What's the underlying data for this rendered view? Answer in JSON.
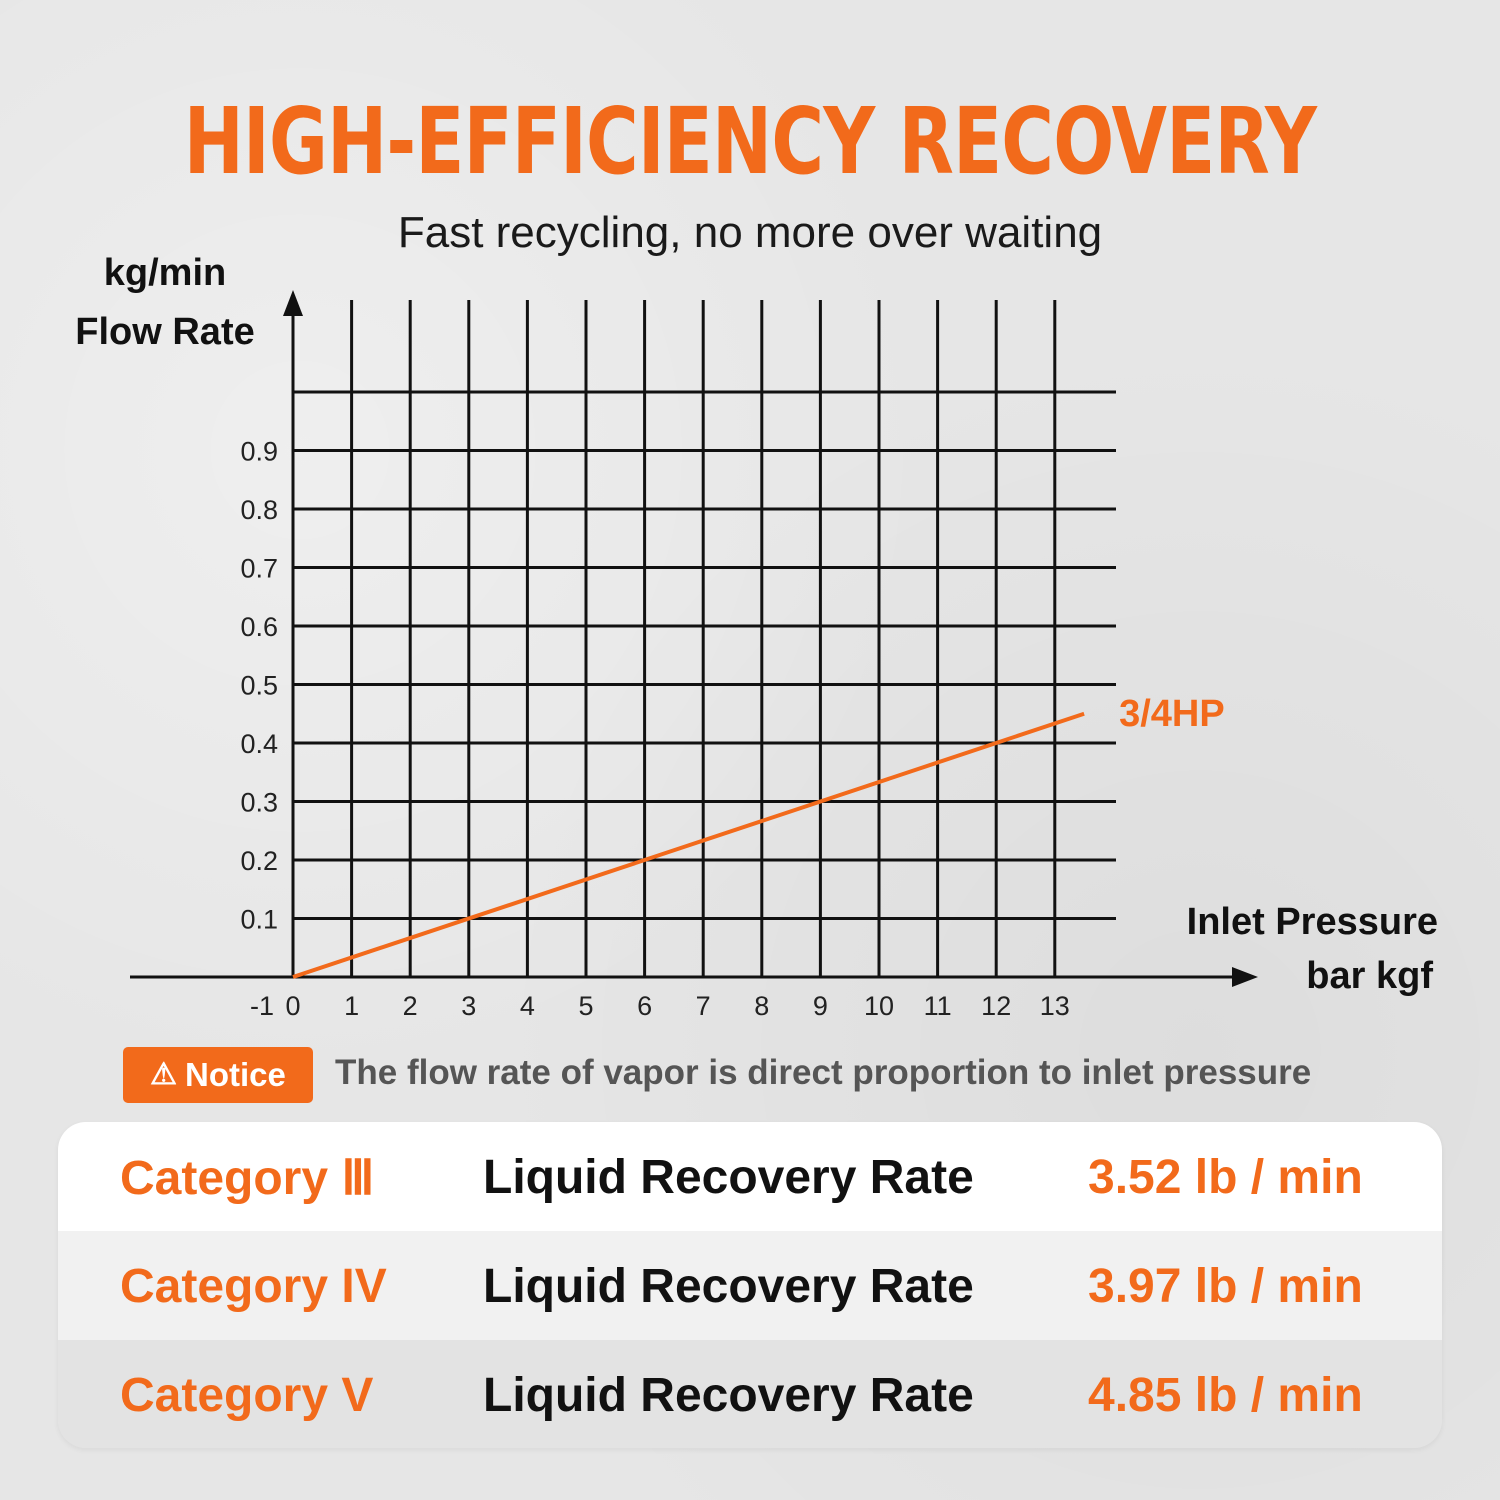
{
  "header": {
    "title": "HIGH-EFFICIENCY RECOVERY",
    "subtitle": "Fast recycling, no more over waiting"
  },
  "colors": {
    "accent": "#f26a1b",
    "grid": "#111111",
    "text": "#1a1a1a"
  },
  "chart_data": {
    "type": "line",
    "xlabel": [
      "Inlet Pressure",
      "bar kgf"
    ],
    "ylabel": [
      "kg/min",
      "Flow Rate"
    ],
    "xlim": [
      -1,
      13
    ],
    "ylim": [
      0,
      0.9
    ],
    "x_ticks": [
      "-1",
      "0",
      "1",
      "2",
      "3",
      "4",
      "5",
      "6",
      "7",
      "8",
      "9",
      "10",
      "11",
      "12",
      "13"
    ],
    "y_ticks": [
      "0.1",
      "0.2",
      "0.3",
      "0.4",
      "0.5",
      "0.6",
      "0.7",
      "0.8",
      "0.9"
    ],
    "grid": true,
    "series": [
      {
        "name": "3/4HP",
        "x": [
          0,
          13.5
        ],
        "y": [
          0,
          0.45
        ]
      }
    ]
  },
  "notice": {
    "icon": "warning-icon",
    "badge_label": "Notice",
    "text": "The flow rate of vapor is direct proportion to inlet pressure"
  },
  "specs": [
    {
      "category": "Category Ⅲ",
      "label": "Liquid Recovery Rate",
      "value": "3.52 lb / min"
    },
    {
      "category": "Category IV",
      "label": "Liquid Recovery Rate",
      "value": "3.97 lb / min"
    },
    {
      "category": "Category V",
      "label": "Liquid Recovery Rate",
      "value": "4.85 lb / min"
    }
  ]
}
